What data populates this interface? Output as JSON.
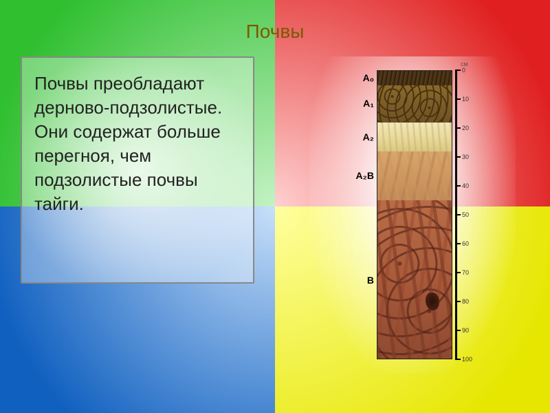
{
  "title": "Почвы",
  "body_text": "Почвы преобладают дерново-подзолистые. Они содержат больше перегноя, чем подзолистые почвы тайги.",
  "bg_colors": {
    "tl_from": "#2fbf2f",
    "tl_to": "#c4f2c4",
    "tr_from": "#e02020",
    "tr_to": "#ffd0d0",
    "bl_from": "#1060c0",
    "bl_to": "#c8e0fa",
    "br_from": "#e6e600",
    "br_to": "#ffffa0"
  },
  "profile": {
    "total_cm": 100,
    "unit_label": "см",
    "horizons": [
      {
        "label": "A₀",
        "from_cm": 0,
        "to_cm": 5,
        "css": "h-a0"
      },
      {
        "label": "A₁",
        "from_cm": 5,
        "to_cm": 18,
        "css": "h-a1"
      },
      {
        "label": "A₂",
        "from_cm": 18,
        "to_cm": 28,
        "css": "h-a2"
      },
      {
        "label": "A₂B",
        "from_cm": 28,
        "to_cm": 45,
        "css": "h-a2b"
      },
      {
        "label": "B",
        "from_cm": 45,
        "to_cm": 100,
        "css": "h-b"
      }
    ],
    "ticks_cm": [
      0,
      10,
      20,
      30,
      40,
      50,
      60,
      70,
      80,
      90,
      100
    ]
  }
}
